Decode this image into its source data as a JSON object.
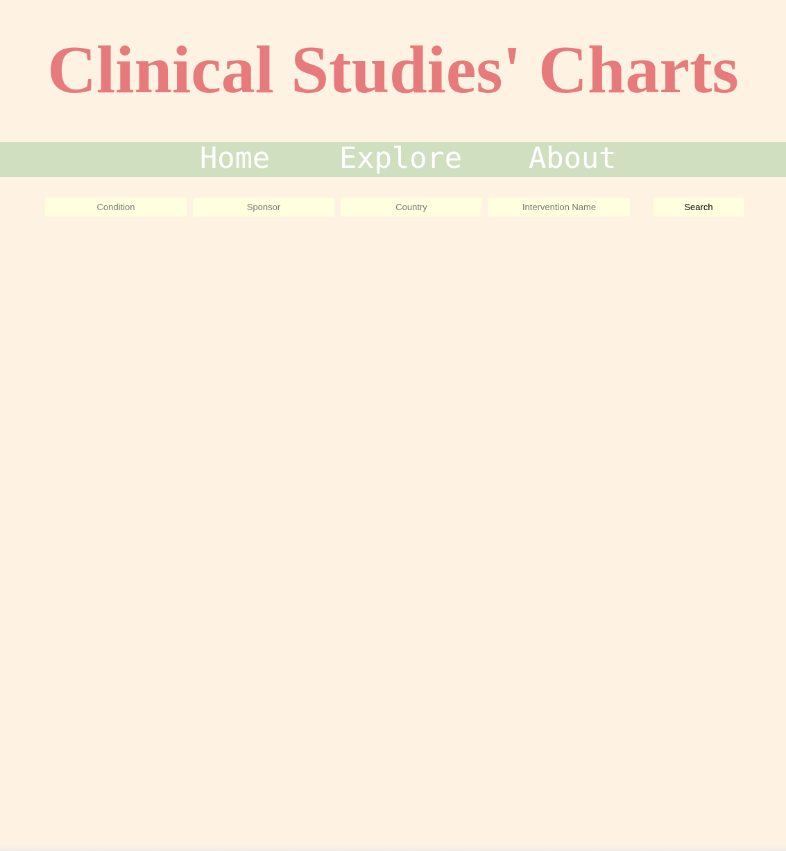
{
  "header": {
    "title": "Clinical Studies' Charts"
  },
  "nav": {
    "items": [
      {
        "label": "Home"
      },
      {
        "label": "Explore"
      },
      {
        "label": "About"
      }
    ]
  },
  "search": {
    "fields": {
      "condition": {
        "placeholder": "Condition",
        "value": ""
      },
      "sponsor": {
        "placeholder": "Sponsor",
        "value": ""
      },
      "country": {
        "placeholder": "Country",
        "value": ""
      },
      "intervention": {
        "placeholder": "Intervention Name",
        "value": ""
      }
    },
    "button_label": "Search"
  },
  "colors": {
    "background": "#fef3e2",
    "title": "#e77b7b",
    "nav_background": "#d1dfc1",
    "nav_text": "#ffffff",
    "input_background": "#ffffe0"
  }
}
